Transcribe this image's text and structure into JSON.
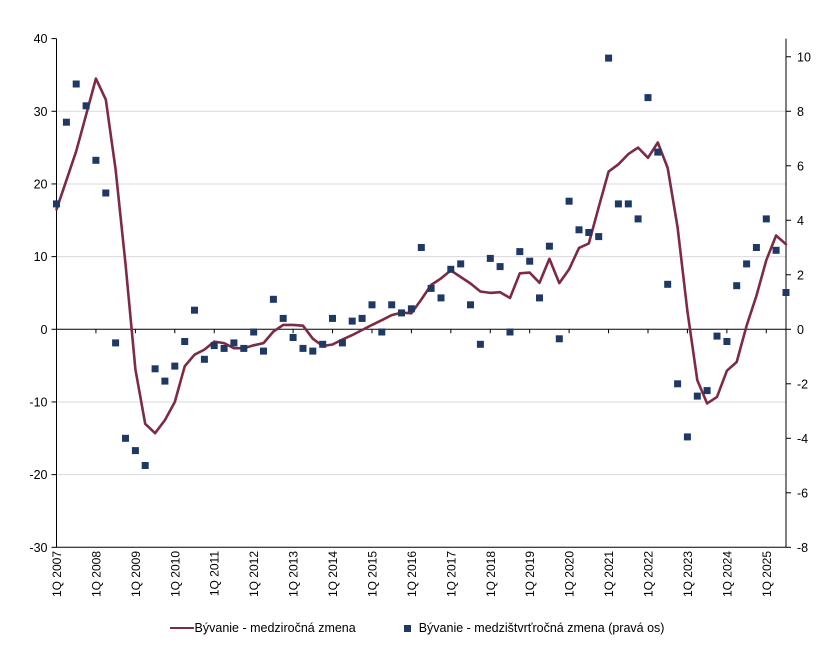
{
  "chart_data": {
    "type": "line+scatter",
    "title": "",
    "x_axis": {
      "tick_labels": [
        "1Q 2007",
        "1Q 2008",
        "1Q 2009",
        "1Q 2010",
        "1Q 2011",
        "1Q 2012",
        "1Q 2013",
        "1Q 2014",
        "1Q 2015",
        "1Q 2016",
        "1Q 2017",
        "1Q 2018",
        "1Q 2019",
        "1Q 2020",
        "1Q 2021",
        "1Q 2022",
        "1Q 2023",
        "1Q 2024",
        "1Q 2025"
      ],
      "quarters_per_tick": 4,
      "label_rotation_deg": -90
    },
    "left_axis": {
      "min": -30,
      "max": 40,
      "step": 10,
      "ticks": [
        40,
        30,
        20,
        10,
        0,
        -10,
        -20,
        -30
      ]
    },
    "right_axis": {
      "min": -8,
      "max": 10,
      "step": 2,
      "ticks": [
        10,
        8,
        6,
        4,
        2,
        0,
        -2,
        -4,
        -6,
        -8
      ]
    },
    "grid": {
      "on": true,
      "color": "#d9d9d9",
      "grid_at_left_values": [
        30,
        20,
        10,
        -10,
        -20
      ]
    },
    "zero_line_color": "#000000",
    "axis_color": "#000000",
    "legend_position": "bottom-center",
    "series": [
      {
        "name": "Bývanie - medziročná zmena",
        "type": "line",
        "axis": "left",
        "color": "#7d2b44",
        "values": [
          16.5,
          20.5,
          24.5,
          29.5,
          34.5,
          31.6,
          22,
          9,
          -5.5,
          -13,
          -14.3,
          -12.5,
          -10,
          -5.1,
          -3.5,
          -2.8,
          -1.7,
          -1.9,
          -2.6,
          -2.6,
          -2.2,
          -1.9,
          -0.3,
          0.6,
          0.6,
          0.5,
          -1.3,
          -2.3,
          -2.1,
          -1.4,
          -0.8,
          -0.1,
          0.6,
          1.25,
          1.95,
          2.3,
          2.2,
          4.1,
          6.1,
          7,
          8.1,
          7.2,
          6.3,
          5.2,
          5,
          5.1,
          4.3,
          7.7,
          7.8,
          6.4,
          9.7,
          6.35,
          8.25,
          11.2,
          11.8,
          16.8,
          21.7,
          22.7,
          24.1,
          25,
          23.6,
          25.7,
          22.2,
          14,
          2.5,
          -7,
          -10.2,
          -9.3,
          -5.7,
          -4.5,
          0.5,
          4.6,
          9.5,
          12.9,
          11.7
        ]
      },
      {
        "name": "Bývanie - medzištvrťročná zmena (pravá os)",
        "type": "scatter",
        "axis": "right",
        "color": "#1f3864",
        "values": [
          4.6,
          7.6,
          9,
          8.2,
          6.2,
          5,
          -0.5,
          -4,
          -4.45,
          -5,
          -1.45,
          -1.9,
          -1.35,
          -0.45,
          0.7,
          -1.1,
          -0.6,
          -0.7,
          -0.5,
          -0.7,
          -0.1,
          -0.8,
          1.1,
          0.4,
          -0.3,
          -0.7,
          -0.8,
          -0.55,
          0.4,
          -0.5,
          0.3,
          0.4,
          0.9,
          -0.1,
          0.9,
          0.6,
          0.75,
          3,
          1.5,
          1.15,
          2.2,
          2.4,
          0.9,
          -0.55,
          2.6,
          2.3,
          -0.1,
          2.85,
          2.5,
          1.15,
          3.05,
          -0.35,
          4.7,
          3.65,
          3.55,
          3.4,
          9.95,
          4.6,
          4.6,
          4.05,
          8.5,
          6.5,
          1.65,
          -2,
          -3.95,
          -2.45,
          -2.25,
          -0.25,
          -0.45,
          1.6,
          2.4,
          3,
          4.05,
          2.9,
          1.35
        ]
      }
    ]
  },
  "legend": {
    "line_label": "Bývanie - medziročná zmena",
    "scatter_label": "Bývanie - medzištvrťročná zmena (pravá os)"
  }
}
